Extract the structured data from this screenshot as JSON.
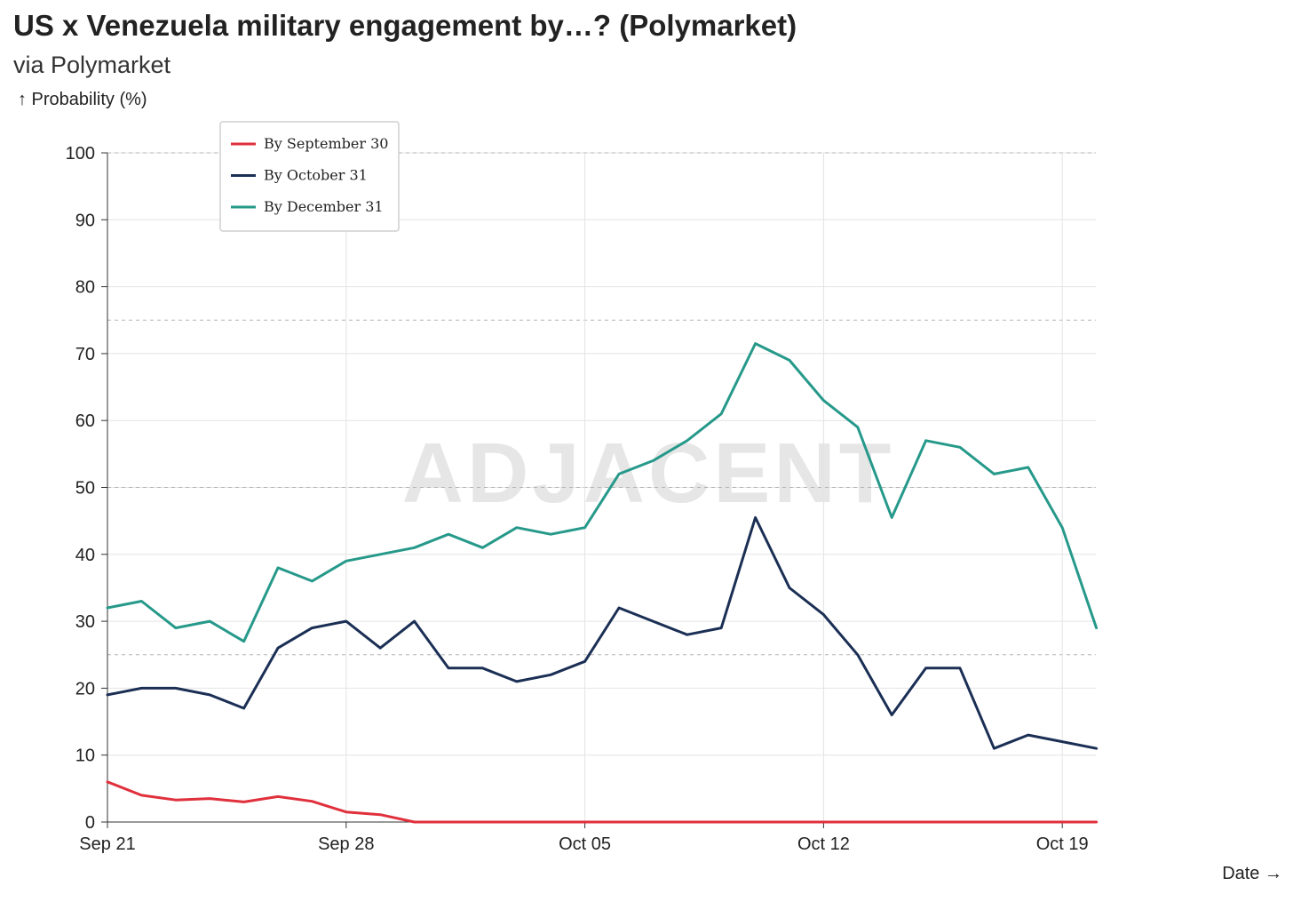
{
  "header": {
    "title": "US x Venezuela military engagement by…? (Polymarket)",
    "subtitle": "via Polymarket",
    "y_axis_label": "↑ Probability (%)",
    "x_axis_label": "Date →"
  },
  "watermark": "ADJACENT",
  "chart_data": {
    "type": "line",
    "title": "US x Venezuela military engagement by…? (Polymarket)",
    "subtitle": "via Polymarket",
    "xlabel": "Date",
    "ylabel": "Probability (%)",
    "x": [
      "2025-09-21",
      "2025-09-22",
      "2025-09-23",
      "2025-09-24",
      "2025-09-25",
      "2025-09-26",
      "2025-09-27",
      "2025-09-28",
      "2025-09-29",
      "2025-09-30",
      "2025-10-01",
      "2025-10-02",
      "2025-10-03",
      "2025-10-04",
      "2025-10-05",
      "2025-10-06",
      "2025-10-07",
      "2025-10-08",
      "2025-10-09",
      "2025-10-10",
      "2025-10-11",
      "2025-10-12",
      "2025-10-13",
      "2025-10-14",
      "2025-10-15",
      "2025-10-16",
      "2025-10-17",
      "2025-10-18",
      "2025-10-19",
      "2025-10-20"
    ],
    "x_ticks": [
      "Sep 21",
      "Sep 28",
      "Oct 05",
      "Oct 12",
      "Oct 19"
    ],
    "x_tick_dates": [
      "2025-09-21",
      "2025-09-28",
      "2025-10-05",
      "2025-10-12",
      "2025-10-19"
    ],
    "ylim": [
      0,
      100
    ],
    "y_ticks": [
      0,
      10,
      20,
      30,
      40,
      50,
      60,
      70,
      80,
      90,
      100
    ],
    "dashed_reference_lines": [
      25,
      50,
      75,
      100
    ],
    "grid": true,
    "legend_position": "top-left",
    "series": [
      {
        "name": "By September 30",
        "color": "#e0303c",
        "values": [
          6,
          4,
          3.3,
          3.5,
          3,
          3.8,
          3.1,
          1.5,
          1.1,
          0,
          0,
          0,
          0,
          0,
          0,
          0,
          0,
          0,
          0,
          0,
          0,
          0,
          0,
          0,
          0,
          0,
          0,
          0,
          0,
          0
        ]
      },
      {
        "name": "By October 31",
        "color": "#1b2f55",
        "values": [
          19,
          20,
          20,
          19,
          17,
          26,
          29,
          30,
          26,
          30,
          23,
          23,
          21,
          22,
          24,
          32,
          30,
          28,
          29,
          45.5,
          35,
          31,
          25,
          16,
          23,
          23,
          11,
          13,
          12,
          11
        ]
      },
      {
        "name": "By December 31",
        "color": "#26998a",
        "values": [
          32,
          33,
          29,
          30,
          27,
          38,
          36,
          39,
          40,
          41,
          43,
          41,
          44,
          43,
          44,
          52,
          54,
          57,
          61,
          71.5,
          69,
          63,
          59,
          45.5,
          57,
          56,
          52,
          53,
          44,
          29
        ]
      }
    ]
  }
}
